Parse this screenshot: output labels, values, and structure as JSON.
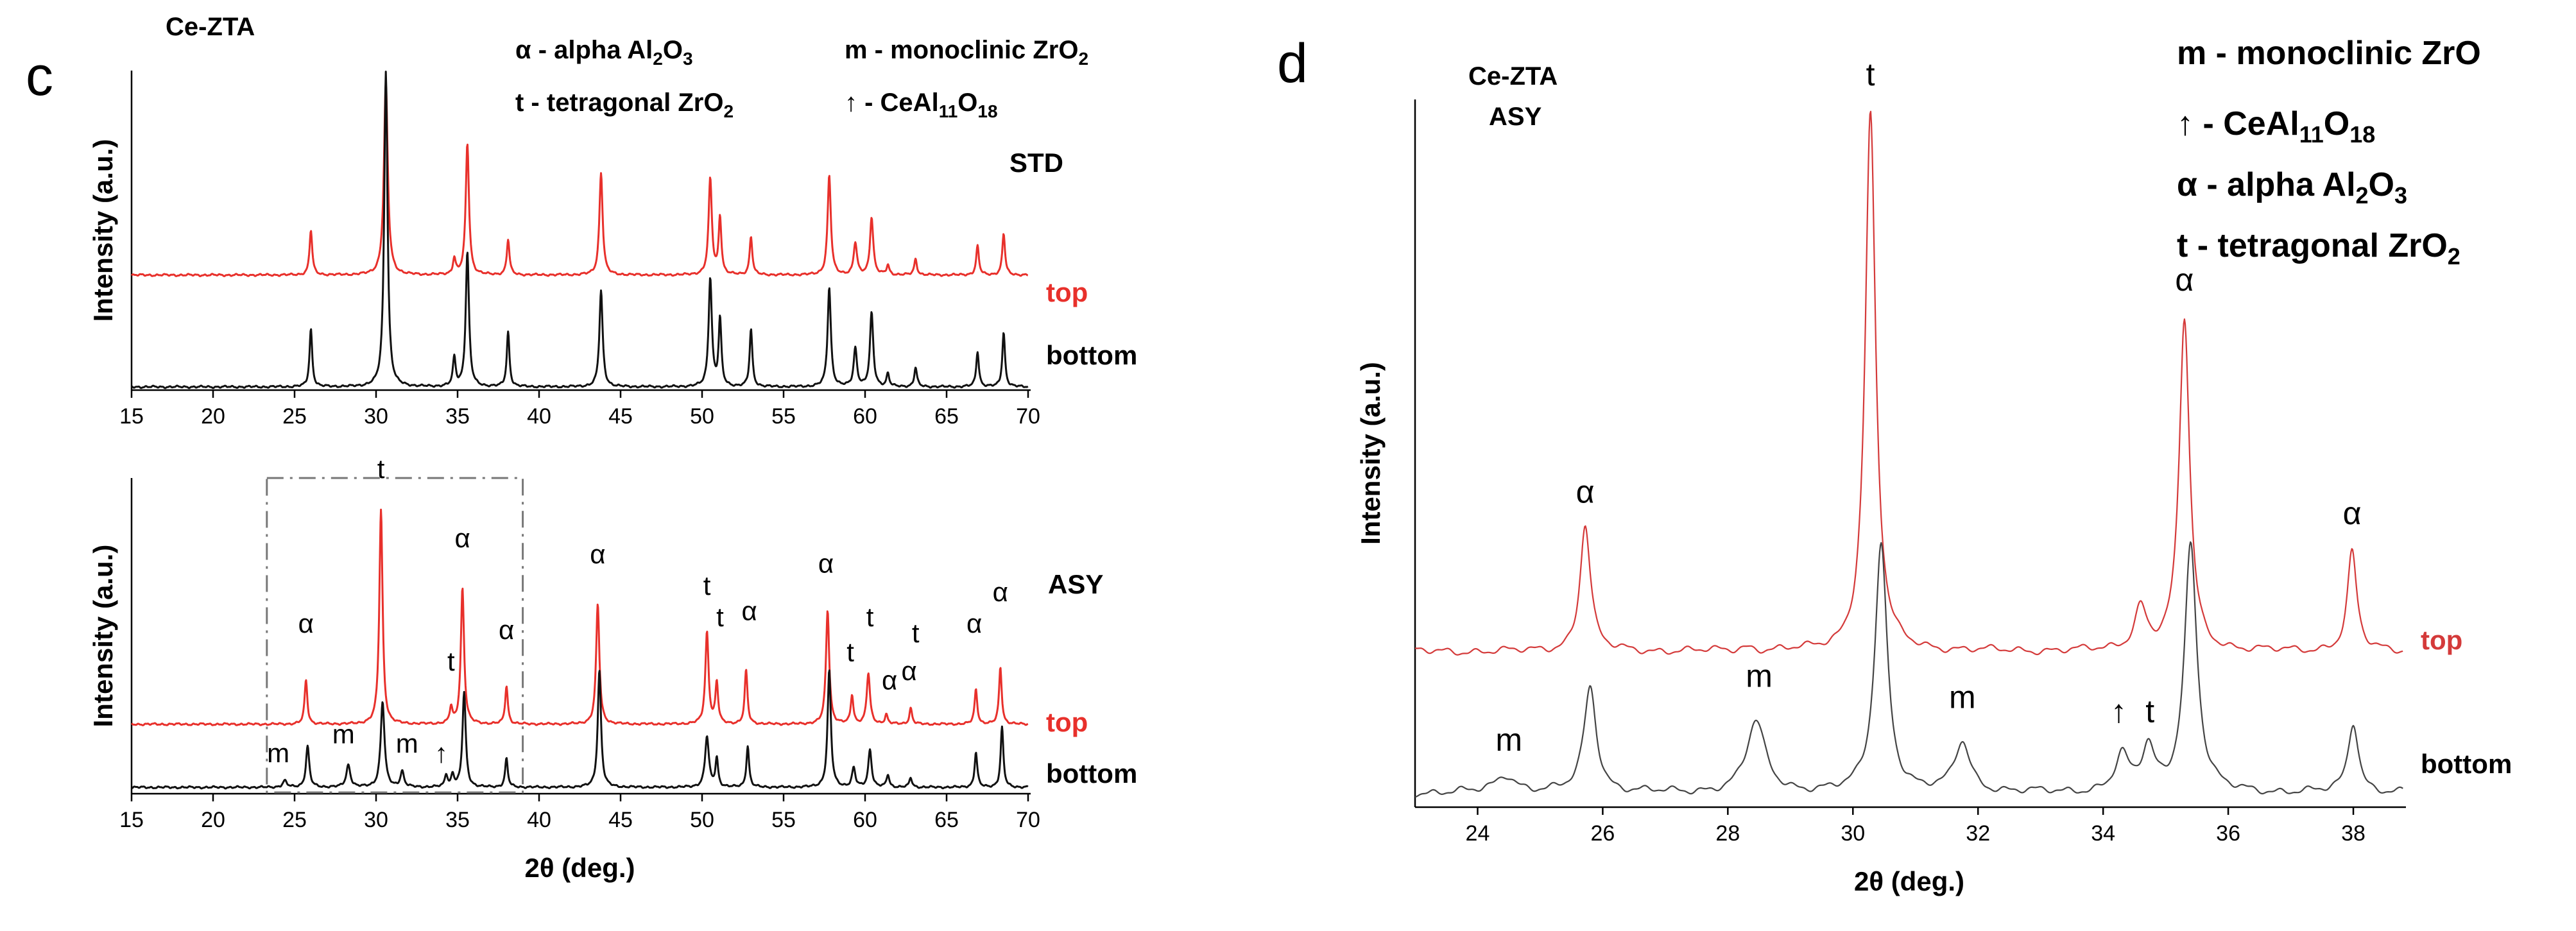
{
  "colors": {
    "top": "#e8302b",
    "bottom": "#111111",
    "top_d": "#d43a3a",
    "bottom_d": "#444444"
  },
  "panel_c": {
    "label": "c",
    "sample": "Ce-ZTA",
    "legend": {
      "alpha": [
        "α - alpha Al",
        "2",
        "O",
        "3"
      ],
      "tetra": [
        "t - tetragonal ZrO",
        "2"
      ],
      "mono": [
        "m - monoclinic ZrO",
        "2"
      ],
      "arrow": [
        "↑ - CeAl",
        "11",
        "O",
        "18"
      ]
    }
  },
  "panel_d": {
    "label": "d",
    "sample_line1": "Ce-ZTA",
    "sample_line2": "ASY",
    "legend": {
      "mono": "m - monoclinic ZrO",
      "arrow": [
        "↑ - CeAl",
        "11",
        "O",
        "18"
      ],
      "alpha": [
        "α - alpha Al",
        "2",
        "O",
        "3"
      ],
      "tetra": [
        "t - tetragonal ZrO",
        "2"
      ]
    }
  },
  "chart_data": [
    {
      "id": "c-std",
      "type": "line",
      "title": "STD",
      "xlabel": "",
      "ylabel": "Intensity (a.u.)",
      "xlim": [
        15,
        70
      ],
      "xticks": [
        15,
        20,
        25,
        30,
        35,
        40,
        45,
        50,
        55,
        60,
        65,
        70
      ],
      "series": [
        {
          "name": "top",
          "offset": 0.36,
          "peaks": [
            [
              26.0,
              0.14,
              0.1
            ],
            [
              30.6,
              0.6,
              0.14
            ],
            [
              34.8,
              0.05,
              0.1
            ],
            [
              35.6,
              0.41,
              0.12
            ],
            [
              38.1,
              0.11,
              0.1
            ],
            [
              43.8,
              0.32,
              0.12
            ],
            [
              50.5,
              0.3,
              0.12
            ],
            [
              51.1,
              0.18,
              0.1
            ],
            [
              53.0,
              0.12,
              0.1
            ],
            [
              57.8,
              0.31,
              0.12
            ],
            [
              59.4,
              0.1,
              0.12
            ],
            [
              60.4,
              0.18,
              0.12
            ],
            [
              61.4,
              0.03,
              0.1
            ],
            [
              63.1,
              0.05,
              0.1
            ],
            [
              66.9,
              0.09,
              0.1
            ],
            [
              68.5,
              0.13,
              0.1
            ]
          ]
        },
        {
          "name": "bottom",
          "offset": 0.01,
          "peaks": [
            [
              26.0,
              0.18,
              0.1
            ],
            [
              30.6,
              0.99,
              0.12
            ],
            [
              34.8,
              0.09,
              0.1
            ],
            [
              35.6,
              0.42,
              0.12
            ],
            [
              38.1,
              0.17,
              0.1
            ],
            [
              43.8,
              0.3,
              0.12
            ],
            [
              50.5,
              0.34,
              0.12
            ],
            [
              51.1,
              0.21,
              0.1
            ],
            [
              53.0,
              0.18,
              0.1
            ],
            [
              57.8,
              0.31,
              0.12
            ],
            [
              59.4,
              0.12,
              0.12
            ],
            [
              60.4,
              0.23,
              0.12
            ],
            [
              61.4,
              0.04,
              0.1
            ],
            [
              63.1,
              0.06,
              0.1
            ],
            [
              66.9,
              0.11,
              0.1
            ],
            [
              68.5,
              0.17,
              0.1
            ]
          ]
        }
      ],
      "series_labels": [
        "top",
        "bottom"
      ]
    },
    {
      "id": "c-asy",
      "type": "line",
      "title": "ASY",
      "xlabel": "2θ (deg.)",
      "ylabel": "Intensity (a.u.)",
      "xlim": [
        15,
        70
      ],
      "xticks": [
        15,
        20,
        25,
        30,
        35,
        40,
        45,
        50,
        55,
        60,
        65,
        70
      ],
      "zoom_box_x": [
        23.3,
        39.0
      ],
      "series": [
        {
          "name": "top",
          "offset": 0.22,
          "peaks": [
            [
              25.7,
              0.14,
              0.1
            ],
            [
              30.3,
              0.68,
              0.12
            ],
            [
              34.6,
              0.05,
              0.1
            ],
            [
              35.3,
              0.43,
              0.12
            ],
            [
              38.0,
              0.12,
              0.1
            ],
            [
              43.6,
              0.38,
              0.12
            ],
            [
              50.3,
              0.29,
              0.12
            ],
            [
              50.9,
              0.13,
              0.1
            ],
            [
              52.7,
              0.17,
              0.1
            ],
            [
              57.7,
              0.36,
              0.12
            ],
            [
              59.2,
              0.09,
              0.1
            ],
            [
              60.2,
              0.16,
              0.12
            ],
            [
              61.3,
              0.03,
              0.1
            ],
            [
              62.8,
              0.05,
              0.1
            ],
            [
              66.8,
              0.11,
              0.1
            ],
            [
              68.3,
              0.18,
              0.1
            ]
          ]
        },
        {
          "name": "bottom",
          "offset": 0.02,
          "peaks": [
            [
              24.4,
              0.02,
              0.15
            ],
            [
              25.8,
              0.13,
              0.12
            ],
            [
              28.3,
              0.07,
              0.15
            ],
            [
              30.4,
              0.27,
              0.14
            ],
            [
              31.6,
              0.05,
              0.13
            ],
            [
              34.3,
              0.04,
              0.1
            ],
            [
              34.7,
              0.04,
              0.1
            ],
            [
              35.4,
              0.3,
              0.12
            ],
            [
              38.0,
              0.09,
              0.1
            ],
            [
              43.7,
              0.37,
              0.12
            ],
            [
              50.3,
              0.16,
              0.14
            ],
            [
              50.9,
              0.09,
              0.1
            ],
            [
              52.8,
              0.13,
              0.1
            ],
            [
              57.8,
              0.37,
              0.12
            ],
            [
              59.3,
              0.06,
              0.12
            ],
            [
              60.3,
              0.12,
              0.12
            ],
            [
              61.4,
              0.04,
              0.1
            ],
            [
              62.8,
              0.03,
              0.1
            ],
            [
              66.8,
              0.11,
              0.1
            ],
            [
              68.4,
              0.19,
              0.1
            ]
          ]
        }
      ],
      "series_labels": [
        "top",
        "bottom"
      ],
      "annotations": [
        {
          "text": "t",
          "x": 30.3,
          "y": 1.0
        },
        {
          "text": "α",
          "x": 25.7,
          "y": 0.51
        },
        {
          "text": "α",
          "x": 35.3,
          "y": 0.78
        },
        {
          "text": "t",
          "x": 34.6,
          "y": 0.39
        },
        {
          "text": "α",
          "x": 38.0,
          "y": 0.49
        },
        {
          "text": "α",
          "x": 43.6,
          "y": 0.73
        },
        {
          "text": "t",
          "x": 50.3,
          "y": 0.63
        },
        {
          "text": "t",
          "x": 51.1,
          "y": 0.53
        },
        {
          "text": "α",
          "x": 52.9,
          "y": 0.55
        },
        {
          "text": "α",
          "x": 57.6,
          "y": 0.7
        },
        {
          "text": "t",
          "x": 59.1,
          "y": 0.42
        },
        {
          "text": "t",
          "x": 60.3,
          "y": 0.53
        },
        {
          "text": "α",
          "x": 61.5,
          "y": 0.33
        },
        {
          "text": "α",
          "x": 62.7,
          "y": 0.36
        },
        {
          "text": "t",
          "x": 63.1,
          "y": 0.48
        },
        {
          "text": "α",
          "x": 66.7,
          "y": 0.51
        },
        {
          "text": "α",
          "x": 68.3,
          "y": 0.61
        },
        {
          "text": "m",
          "x": 24.0,
          "y": 0.1
        },
        {
          "text": "m",
          "x": 28.0,
          "y": 0.16
        },
        {
          "text": "m",
          "x": 31.9,
          "y": 0.13
        },
        {
          "text": "↑",
          "x": 34.0,
          "y": 0.1
        }
      ]
    },
    {
      "id": "d",
      "type": "line",
      "title": "Ce-ZTA ASY",
      "xlabel": "2θ (deg.)",
      "ylabel": "Intensity (a.u.)",
      "xlim": [
        23,
        38.8
      ],
      "xticks": [
        24,
        26,
        28,
        30,
        32,
        34,
        36,
        38
      ],
      "series": [
        {
          "name": "top",
          "offset": 0.22,
          "peaks": [
            [
              25.72,
              0.18,
              0.1
            ],
            [
              28.3,
              0.005,
              0.15
            ],
            [
              30.28,
              0.76,
              0.1
            ],
            [
              34.6,
              0.06,
              0.12
            ],
            [
              35.3,
              0.47,
              0.1
            ],
            [
              37.98,
              0.14,
              0.09
            ]
          ]
        },
        {
          "name": "bottom",
          "offset": 0.02,
          "peaks": [
            [
              24.45,
              0.025,
              0.2
            ],
            [
              25.8,
              0.15,
              0.12
            ],
            [
              28.45,
              0.1,
              0.18
            ],
            [
              30.45,
              0.35,
              0.12
            ],
            [
              31.75,
              0.07,
              0.15
            ],
            [
              34.3,
              0.05,
              0.13
            ],
            [
              34.72,
              0.06,
              0.12
            ],
            [
              35.4,
              0.35,
              0.12
            ],
            [
              38.0,
              0.1,
              0.1
            ]
          ]
        }
      ],
      "series_labels": [
        "top",
        "bottom"
      ],
      "annotations": [
        {
          "text": "t",
          "x": 30.28,
          "y": 1.02
        },
        {
          "text": "α",
          "x": 25.72,
          "y": 0.43
        },
        {
          "text": "α",
          "x": 35.3,
          "y": 0.73
        },
        {
          "text": "α",
          "x": 37.98,
          "y": 0.4
        },
        {
          "text": "m",
          "x": 24.5,
          "y": 0.08
        },
        {
          "text": "m",
          "x": 28.5,
          "y": 0.17
        },
        {
          "text": "m",
          "x": 31.75,
          "y": 0.14
        },
        {
          "text": "↑",
          "x": 34.25,
          "y": 0.12
        },
        {
          "text": "t",
          "x": 34.75,
          "y": 0.12
        }
      ]
    }
  ]
}
